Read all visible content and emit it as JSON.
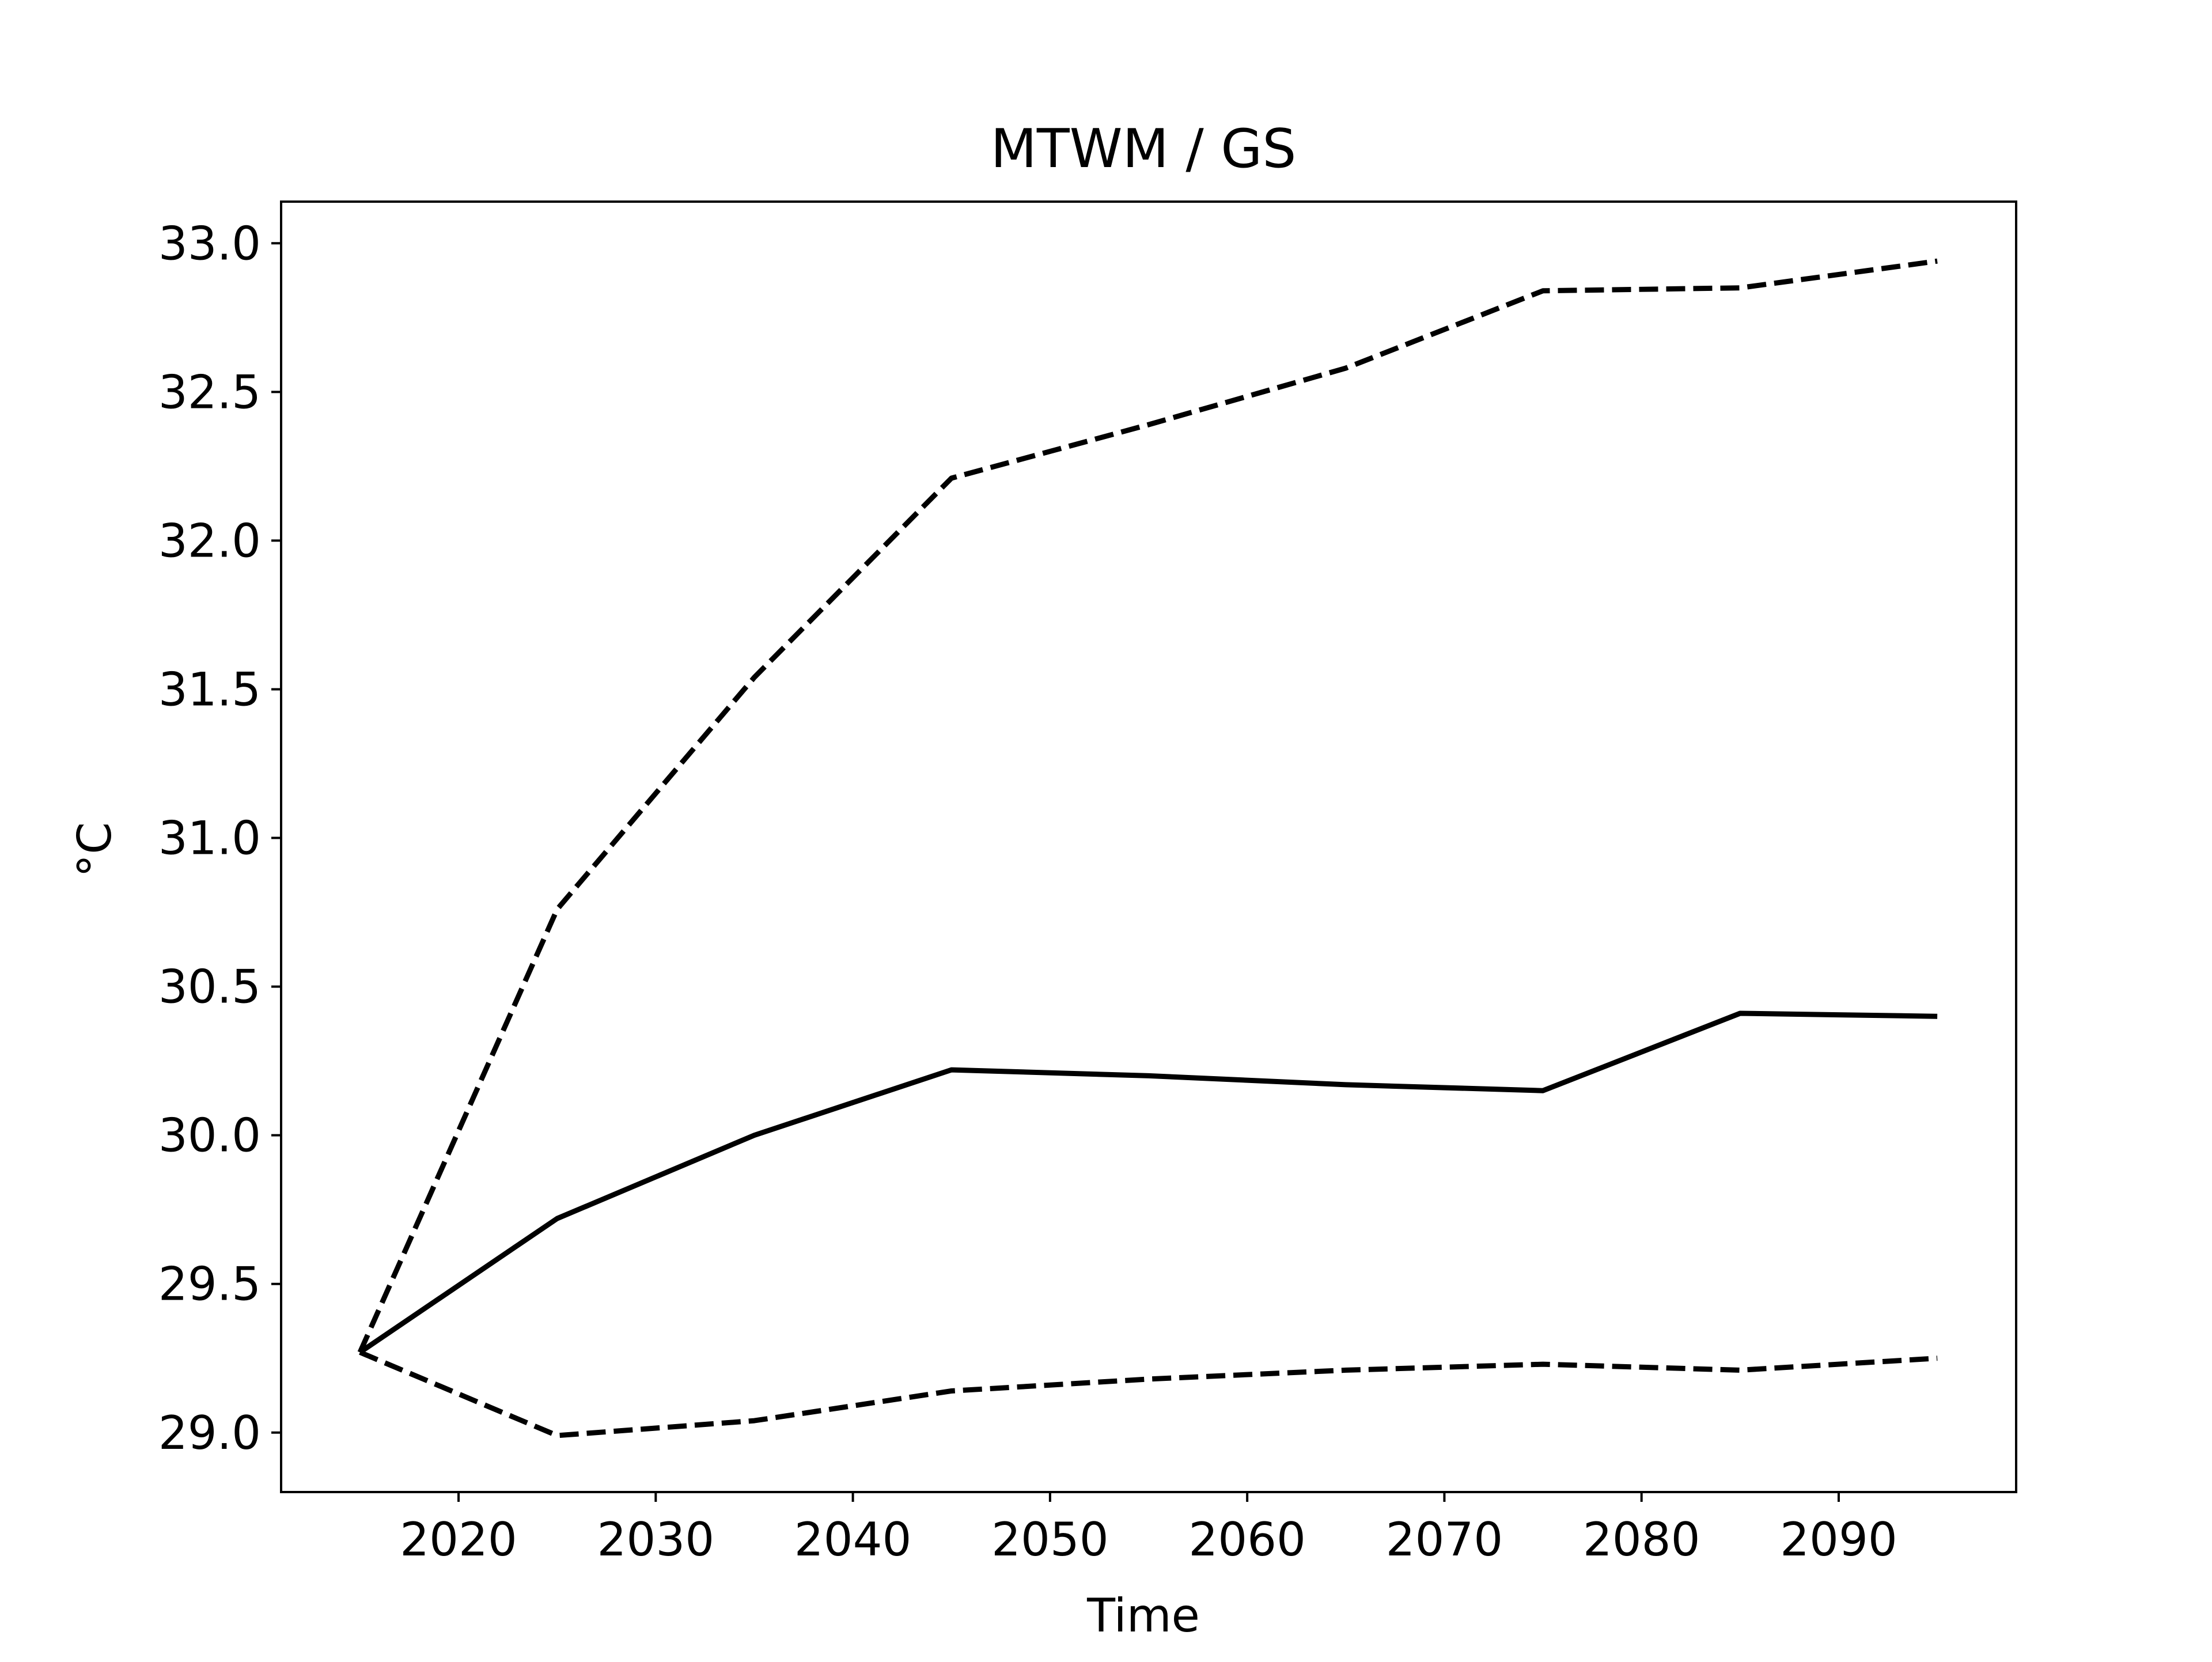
{
  "chart_data": {
    "type": "line",
    "title": "MTWM / GS",
    "xlabel": "Time",
    "ylabel": "°C",
    "x": [
      2015,
      2025,
      2035,
      2045,
      2055,
      2065,
      2075,
      2085,
      2095
    ],
    "series": [
      {
        "values": [
          29.27,
          30.76,
          31.54,
          32.21,
          32.39,
          32.58,
          32.84,
          32.85,
          32.94
        ],
        "style": "dashed",
        "color": "#000000"
      },
      {
        "values": [
          29.27,
          29.72,
          30.0,
          30.22,
          30.2,
          30.17,
          30.15,
          30.41,
          30.4
        ],
        "style": "solid",
        "color": "#000000"
      },
      {
        "values": [
          29.27,
          28.99,
          29.04,
          29.14,
          29.18,
          29.21,
          29.23,
          29.21,
          29.25
        ],
        "style": "dashed",
        "color": "#000000"
      }
    ],
    "xlim": [
      2011,
      2099
    ],
    "ylim": [
      28.8,
      33.14
    ],
    "xticks": [
      2020,
      2030,
      2040,
      2050,
      2060,
      2070,
      2080,
      2090
    ],
    "yticks": [
      29.0,
      29.5,
      30.0,
      30.5,
      31.0,
      31.5,
      32.0,
      32.5,
      33.0
    ],
    "xtick_labels": [
      "2020",
      "2030",
      "2040",
      "2050",
      "2060",
      "2070",
      "2080",
      "2090"
    ],
    "ytick_labels": [
      "29.0",
      "29.5",
      "30.0",
      "30.5",
      "31.0",
      "31.5",
      "32.0",
      "32.5",
      "33.0"
    ],
    "grid": false,
    "legend": "none"
  }
}
